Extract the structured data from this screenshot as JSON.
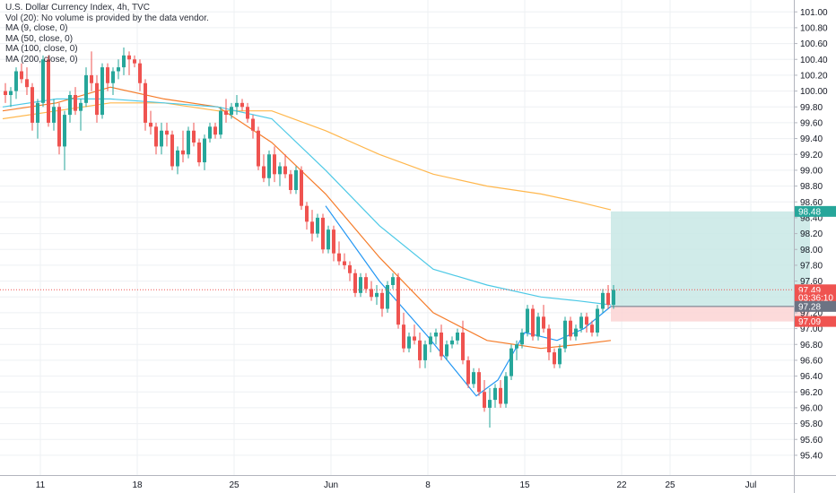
{
  "header": {
    "title": "U.S. Dollar Currency Index, 4h, TVC",
    "volume_note": "Vol (20): No volume is provided by the data vendor.",
    "indicators": [
      "MA (9, close, 0)",
      "MA (50, close, 0)",
      "MA (100, close, 0)",
      "MA (200, close, 0)"
    ]
  },
  "colors": {
    "up": "#26a69a",
    "down": "#ef5350",
    "ma9": "#2196f3",
    "ma50": "#4dc9e6",
    "ma100": "#f57c2a",
    "ma200": "#ffb74d",
    "grid": "#eef0f3",
    "target_zone": "#c8e8e5",
    "stop_zone": "#fbd3d3",
    "last_price_line": "#ef5350"
  },
  "chart_data": {
    "type": "candlestick",
    "symbol": "U.S. Dollar Currency Index",
    "timeframe": "4h",
    "source": "TVC",
    "y_ticks": [
      95.4,
      95.6,
      95.8,
      96.0,
      96.2,
      96.4,
      96.6,
      96.8,
      97.0,
      97.2,
      97.4,
      97.6,
      97.8,
      98.0,
      98.2,
      98.4,
      98.6,
      98.8,
      99.0,
      99.2,
      99.4,
      99.6,
      99.8,
      100.0,
      100.2,
      100.4,
      100.6,
      100.8,
      101.0
    ],
    "y_tick_labels": [
      "95.40",
      "95.60",
      "95.80",
      "96.00",
      "96.20",
      "96.40",
      "96.60",
      "96.80",
      "97.00",
      "97.20",
      "97.40",
      "97.60",
      "97.80",
      "98.00",
      "98.20",
      "98.40",
      "98.60",
      "98.80",
      "99.00",
      "99.20",
      "99.40",
      "99.60",
      "99.80",
      "100.00",
      "100.20",
      "100.40",
      "100.60",
      "100.80",
      "101.00"
    ],
    "ylim": [
      95.15,
      101.15
    ],
    "x_ticks": [
      {
        "label": "11",
        "bar": 7
      },
      {
        "label": "18",
        "bar": 25
      },
      {
        "label": "25",
        "bar": 43
      },
      {
        "label": "Jun",
        "bar": 61
      },
      {
        "label": "8",
        "bar": 79
      },
      {
        "label": "15",
        "bar": 97
      },
      {
        "label": "22",
        "bar": 115
      },
      {
        "label": "25",
        "bar": 124
      },
      {
        "label": "Jul",
        "bar": 139
      }
    ],
    "bar_count_visible": 152,
    "ohlc": [
      [
        100.0,
        100.1,
        99.85,
        99.95
      ],
      [
        99.95,
        100.05,
        99.8,
        100.0
      ],
      [
        100.0,
        100.3,
        99.9,
        100.25
      ],
      [
        100.25,
        100.35,
        100.1,
        100.15
      ],
      [
        100.15,
        100.3,
        99.95,
        100.05
      ],
      [
        100.05,
        100.1,
        99.5,
        99.6
      ],
      [
        99.6,
        99.9,
        99.4,
        99.85
      ],
      [
        99.85,
        100.45,
        99.8,
        100.4
      ],
      [
        100.4,
        100.45,
        99.55,
        99.6
      ],
      [
        99.6,
        99.9,
        99.5,
        99.8
      ],
      [
        99.8,
        99.85,
        99.2,
        99.3
      ],
      [
        99.3,
        99.75,
        99.0,
        99.7
      ],
      [
        99.7,
        100.0,
        99.6,
        99.95
      ],
      [
        99.95,
        100.05,
        99.7,
        99.75
      ],
      [
        99.75,
        99.9,
        99.5,
        99.85
      ],
      [
        99.85,
        100.3,
        99.8,
        100.2
      ],
      [
        100.2,
        100.5,
        100.0,
        100.1
      ],
      [
        100.1,
        100.2,
        99.6,
        99.7
      ],
      [
        99.7,
        100.35,
        99.65,
        100.3
      ],
      [
        100.3,
        100.35,
        100.0,
        100.1
      ],
      [
        100.1,
        100.3,
        99.95,
        100.25
      ],
      [
        100.25,
        100.4,
        100.15,
        100.3
      ],
      [
        100.3,
        100.55,
        100.2,
        100.45
      ],
      [
        100.45,
        100.5,
        100.2,
        100.4
      ],
      [
        100.4,
        100.45,
        100.3,
        100.35
      ],
      [
        100.35,
        100.4,
        100.0,
        100.1
      ],
      [
        100.1,
        100.15,
        99.5,
        99.6
      ],
      [
        99.6,
        99.75,
        99.45,
        99.55
      ],
      [
        99.55,
        99.6,
        99.2,
        99.3
      ],
      [
        99.3,
        99.6,
        99.2,
        99.5
      ],
      [
        99.5,
        99.6,
        99.3,
        99.45
      ],
      [
        99.45,
        99.5,
        99.0,
        99.05
      ],
      [
        99.05,
        99.3,
        98.95,
        99.25
      ],
      [
        99.25,
        99.5,
        99.1,
        99.2
      ],
      [
        99.2,
        99.55,
        99.15,
        99.5
      ],
      [
        99.5,
        99.6,
        99.3,
        99.35
      ],
      [
        99.35,
        99.4,
        99.05,
        99.1
      ],
      [
        99.1,
        99.45,
        99.0,
        99.4
      ],
      [
        99.4,
        99.6,
        99.35,
        99.55
      ],
      [
        99.55,
        99.6,
        99.4,
        99.45
      ],
      [
        99.45,
        99.8,
        99.4,
        99.75
      ],
      [
        99.75,
        99.9,
        99.6,
        99.7
      ],
      [
        99.7,
        99.85,
        99.65,
        99.8
      ],
      [
        99.8,
        99.95,
        99.7,
        99.85
      ],
      [
        99.85,
        99.9,
        99.75,
        99.8
      ],
      [
        99.8,
        99.85,
        99.6,
        99.65
      ],
      [
        99.65,
        99.7,
        99.4,
        99.5
      ],
      [
        99.5,
        99.55,
        99.0,
        99.05
      ],
      [
        99.05,
        99.2,
        98.85,
        98.9
      ],
      [
        98.9,
        99.25,
        98.8,
        99.2
      ],
      [
        99.2,
        99.3,
        98.85,
        98.95
      ],
      [
        98.95,
        99.1,
        98.8,
        99.05
      ],
      [
        99.05,
        99.2,
        98.9,
        98.95
      ],
      [
        98.95,
        99.0,
        98.7,
        98.75
      ],
      [
        98.75,
        99.05,
        98.7,
        99.0
      ],
      [
        99.0,
        99.05,
        98.5,
        98.55
      ],
      [
        98.55,
        98.6,
        98.25,
        98.35
      ],
      [
        98.35,
        98.5,
        98.1,
        98.2
      ],
      [
        98.2,
        98.45,
        98.15,
        98.4
      ],
      [
        98.4,
        98.45,
        97.95,
        98.0
      ],
      [
        98.0,
        98.3,
        97.95,
        98.25
      ],
      [
        98.25,
        98.3,
        97.85,
        97.95
      ],
      [
        97.95,
        98.1,
        97.8,
        97.85
      ],
      [
        97.85,
        97.95,
        97.75,
        97.8
      ],
      [
        97.8,
        97.85,
        97.6,
        97.7
      ],
      [
        97.7,
        97.75,
        97.4,
        97.45
      ],
      [
        97.45,
        97.7,
        97.4,
        97.65
      ],
      [
        97.65,
        97.7,
        97.45,
        97.5
      ],
      [
        97.5,
        97.6,
        97.35,
        97.4
      ],
      [
        97.4,
        97.55,
        97.3,
        97.45
      ],
      [
        97.45,
        97.5,
        97.15,
        97.25
      ],
      [
        97.25,
        97.6,
        97.2,
        97.55
      ],
      [
        97.55,
        97.7,
        97.5,
        97.65
      ],
      [
        97.65,
        97.7,
        97.0,
        97.05
      ],
      [
        97.05,
        97.2,
        96.7,
        96.75
      ],
      [
        96.75,
        96.95,
        96.7,
        96.9
      ],
      [
        96.9,
        97.05,
        96.8,
        96.85
      ],
      [
        96.85,
        96.95,
        96.5,
        96.6
      ],
      [
        96.6,
        96.85,
        96.5,
        96.8
      ],
      [
        96.8,
        96.95,
        96.7,
        96.9
      ],
      [
        96.9,
        97.0,
        96.8,
        96.95
      ],
      [
        96.95,
        97.05,
        96.6,
        96.65
      ],
      [
        96.65,
        96.85,
        96.6,
        96.8
      ],
      [
        96.8,
        96.9,
        96.75,
        96.85
      ],
      [
        96.85,
        97.0,
        96.8,
        96.95
      ],
      [
        96.95,
        97.1,
        96.55,
        96.6
      ],
      [
        96.6,
        96.65,
        96.25,
        96.3
      ],
      [
        96.3,
        96.5,
        96.25,
        96.45
      ],
      [
        96.45,
        96.5,
        96.15,
        96.2
      ],
      [
        96.2,
        96.35,
        95.95,
        96.0
      ],
      [
        96.0,
        96.25,
        95.75,
        96.1
      ],
      [
        96.1,
        96.3,
        96.0,
        96.25
      ],
      [
        96.25,
        96.35,
        96.0,
        96.05
      ],
      [
        96.05,
        96.45,
        96.0,
        96.4
      ],
      [
        96.4,
        96.8,
        96.35,
        96.75
      ],
      [
        96.75,
        96.85,
        96.6,
        96.8
      ],
      [
        96.8,
        97.0,
        96.75,
        96.95
      ],
      [
        96.95,
        97.3,
        96.9,
        97.25
      ],
      [
        97.25,
        97.3,
        96.85,
        96.9
      ],
      [
        96.9,
        97.2,
        96.85,
        97.15
      ],
      [
        97.15,
        97.3,
        96.95,
        97.0
      ],
      [
        97.0,
        97.05,
        96.6,
        96.7
      ],
      [
        96.7,
        96.75,
        96.5,
        96.55
      ],
      [
        96.55,
        96.8,
        96.5,
        96.75
      ],
      [
        96.75,
        97.15,
        96.7,
        97.1
      ],
      [
        97.1,
        97.15,
        96.85,
        96.9
      ],
      [
        96.9,
        97.05,
        96.85,
        97.0
      ],
      [
        97.0,
        97.2,
        96.95,
        97.15
      ],
      [
        97.15,
        97.2,
        96.95,
        97.05
      ],
      [
        97.05,
        97.1,
        96.9,
        96.95
      ],
      [
        96.95,
        97.3,
        96.9,
        97.25
      ],
      [
        97.25,
        97.5,
        97.2,
        97.45
      ],
      [
        97.45,
        97.55,
        97.25,
        97.3
      ],
      [
        97.3,
        97.55,
        97.25,
        97.49
      ]
    ],
    "ma9": [
      [
        60,
        98.55
      ],
      [
        70,
        97.6
      ],
      [
        79,
        96.9
      ],
      [
        88,
        96.15
      ],
      [
        92,
        96.35
      ],
      [
        97,
        96.95
      ],
      [
        103,
        96.85
      ],
      [
        108,
        97.0
      ],
      [
        113,
        97.28
      ]
    ],
    "ma50": [
      [
        0,
        99.8
      ],
      [
        10,
        99.9
      ],
      [
        20,
        99.9
      ],
      [
        30,
        99.85
      ],
      [
        40,
        99.8
      ],
      [
        50,
        99.65
      ],
      [
        60,
        99.0
      ],
      [
        70,
        98.3
      ],
      [
        80,
        97.75
      ],
      [
        90,
        97.55
      ],
      [
        100,
        97.4
      ],
      [
        107,
        97.35
      ],
      [
        113,
        97.3
      ]
    ],
    "ma100": [
      [
        0,
        99.75
      ],
      [
        10,
        99.85
      ],
      [
        20,
        100.05
      ],
      [
        30,
        99.9
      ],
      [
        40,
        99.8
      ],
      [
        50,
        99.35
      ],
      [
        60,
        98.7
      ],
      [
        70,
        97.9
      ],
      [
        80,
        97.2
      ],
      [
        90,
        96.85
      ],
      [
        100,
        96.75
      ],
      [
        107,
        96.8
      ],
      [
        113,
        96.85
      ]
    ],
    "ma200": [
      [
        0,
        99.65
      ],
      [
        10,
        99.75
      ],
      [
        20,
        99.85
      ],
      [
        30,
        99.85
      ],
      [
        40,
        99.75
      ],
      [
        50,
        99.75
      ],
      [
        60,
        99.5
      ],
      [
        70,
        99.2
      ],
      [
        80,
        98.95
      ],
      [
        90,
        98.8
      ],
      [
        100,
        98.7
      ],
      [
        107,
        98.6
      ],
      [
        113,
        98.5
      ]
    ],
    "position": {
      "start_bar": 113,
      "end_bar": 150,
      "entry": 97.28,
      "target": 98.48,
      "stop": 97.09
    },
    "price_labels": [
      {
        "text": "98.48",
        "value": 98.48,
        "color": "#26a69a"
      },
      {
        "text": "97.49",
        "value": 97.49,
        "color": "#ef5350"
      },
      {
        "text": "03:36:10",
        "value": 97.39,
        "color": "#ef5350"
      },
      {
        "text": "97.28",
        "value": 97.28,
        "color": "#6c7383"
      },
      {
        "text": "97.09",
        "value": 97.09,
        "color": "#ef5350"
      }
    ],
    "last_price": 97.49
  }
}
